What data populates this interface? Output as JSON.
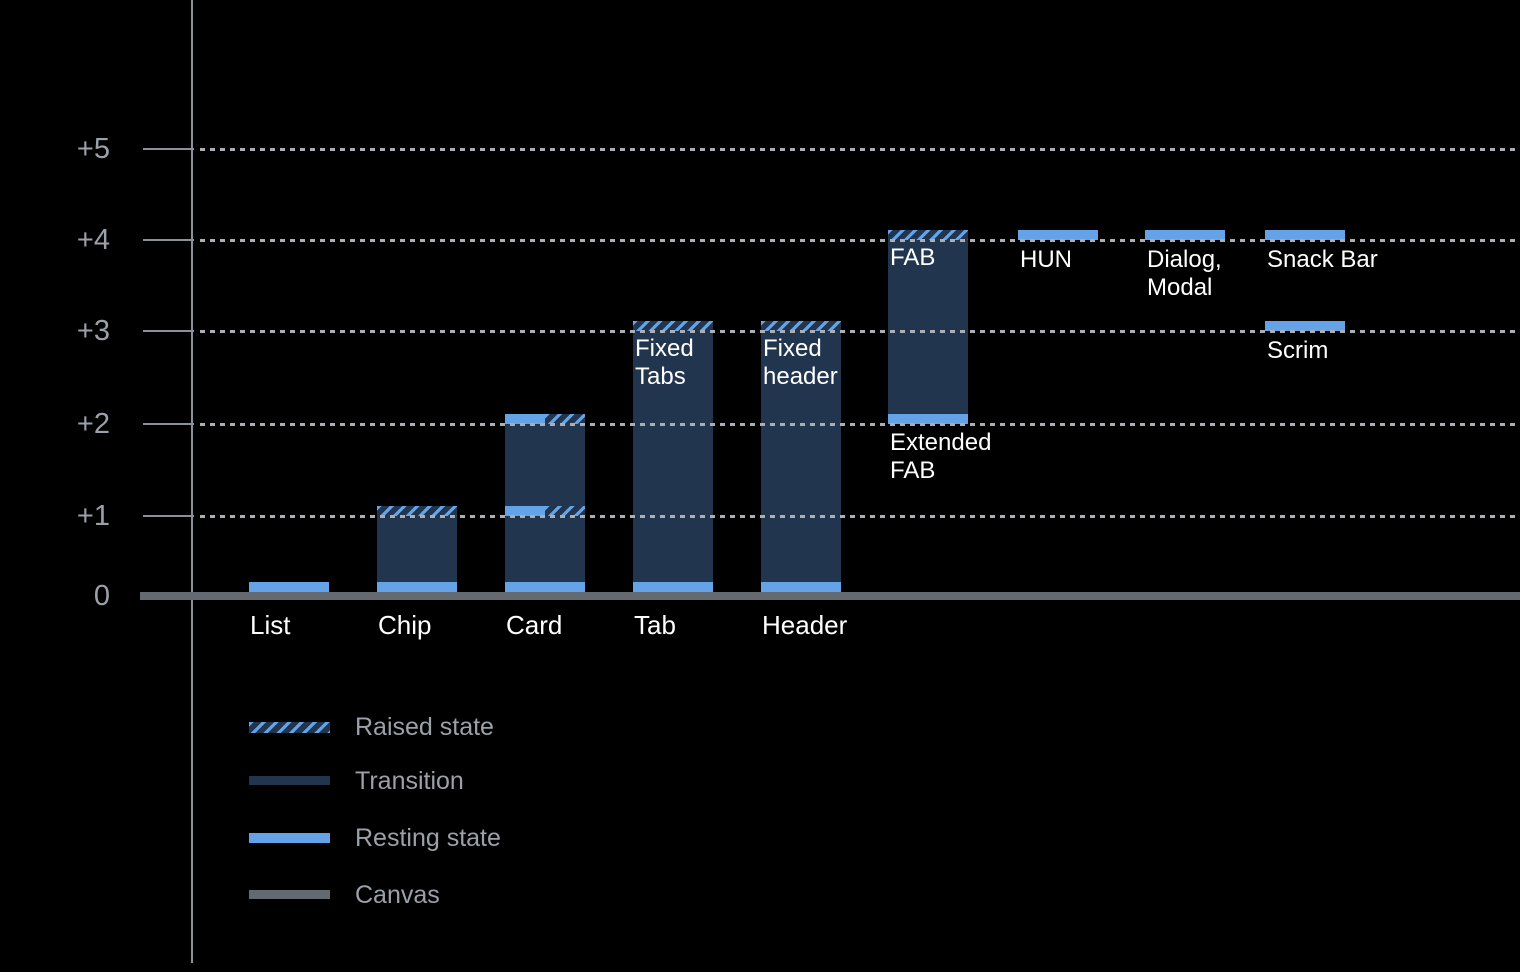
{
  "colors": {
    "background": "#000000",
    "resting": "#64a3e8",
    "transition": "#21364e",
    "canvas": "#646a72",
    "axis": "#8b9199",
    "grid": "#abafb5",
    "tick_label": "#9aa1a8",
    "bar_label": "#ffffff"
  },
  "chart_data": {
    "type": "bar",
    "title": "",
    "xlabel": "",
    "ylabel": "",
    "ylim": [
      0,
      5.5
    ],
    "grid": "dotted horizontal lines at each elevation level",
    "legend_position": "bottom-left",
    "y_axis": {
      "ticks": [
        {
          "label": "+5",
          "value": 5
        },
        {
          "label": "+4",
          "value": 4
        },
        {
          "label": "+3",
          "value": 3
        },
        {
          "label": "+2",
          "value": 2
        },
        {
          "label": "+1",
          "value": 1
        },
        {
          "label": "0",
          "value": 0
        }
      ]
    },
    "legend": {
      "items": [
        {
          "key": "raised",
          "label": "Raised state"
        },
        {
          "key": "transition",
          "label": "Transition"
        },
        {
          "key": "resting",
          "label": "Resting state"
        },
        {
          "key": "canvas",
          "label": "Canvas"
        }
      ]
    },
    "components": [
      {
        "label": "List",
        "axis_label": "List",
        "resting_levels": [
          0
        ],
        "raised_levels": [],
        "transition": null,
        "bands": [
          {
            "level": 0,
            "style": "resting",
            "span": "full"
          }
        ],
        "captions": []
      },
      {
        "label": "Chip",
        "axis_label": "Chip",
        "resting_levels": [
          0
        ],
        "raised_levels": [
          1
        ],
        "transition": [
          0,
          1
        ],
        "bands": [
          {
            "level": 0,
            "style": "resting",
            "span": "full"
          },
          {
            "level": 1,
            "style": "raised",
            "span": "full"
          }
        ],
        "captions": []
      },
      {
        "label": "Card",
        "axis_label": "Card",
        "resting_levels": [
          0,
          1,
          2
        ],
        "raised_levels": [
          1,
          2
        ],
        "transition": [
          0,
          2
        ],
        "bands": [
          {
            "level": 0,
            "style": "resting",
            "span": "full"
          },
          {
            "level": 1,
            "style": "resting",
            "span": "left"
          },
          {
            "level": 1,
            "style": "raised",
            "span": "right"
          },
          {
            "level": 2,
            "style": "resting",
            "span": "left"
          },
          {
            "level": 2,
            "style": "raised",
            "span": "right"
          }
        ],
        "captions": []
      },
      {
        "label": "Tab",
        "axis_label": "Tab",
        "resting_levels": [
          0
        ],
        "raised_levels": [
          3
        ],
        "transition": [
          0,
          3
        ],
        "bands": [
          {
            "level": 0,
            "style": "resting",
            "span": "full"
          },
          {
            "level": 3,
            "style": "raised",
            "span": "full"
          }
        ],
        "captions": [
          {
            "lines": [
              "Fixed",
              "Tabs"
            ],
            "placement": "inside-top"
          }
        ]
      },
      {
        "label": "Header",
        "axis_label": "Header",
        "resting_levels": [
          0
        ],
        "raised_levels": [
          3
        ],
        "transition": [
          0,
          3
        ],
        "bands": [
          {
            "level": 0,
            "style": "resting",
            "span": "full"
          },
          {
            "level": 3,
            "style": "raised",
            "span": "full"
          }
        ],
        "captions": [
          {
            "lines": [
              "Fixed",
              "header"
            ],
            "placement": "inside-top"
          }
        ]
      },
      {
        "label": "FAB / Extended FAB",
        "axis_label": null,
        "resting_levels": [
          2
        ],
        "raised_levels": [
          4
        ],
        "transition": [
          2,
          4
        ],
        "bands": [
          {
            "level": 2,
            "style": "resting",
            "span": "full"
          },
          {
            "level": 4,
            "style": "raised",
            "span": "full"
          }
        ],
        "captions": [
          {
            "lines": [
              "FAB"
            ],
            "placement": "inside-top"
          },
          {
            "lines": [
              "Extended",
              "FAB"
            ],
            "placement": "below-bar"
          }
        ]
      },
      {
        "label": "HUN",
        "axis_label": null,
        "resting_levels": [
          4
        ],
        "raised_levels": [],
        "transition": null,
        "bands": [
          {
            "level": 4,
            "style": "resting",
            "span": "full"
          }
        ],
        "captions": [
          {
            "lines": [
              "HUN"
            ],
            "placement": "below-band"
          }
        ]
      },
      {
        "label": "Dialog, Modal",
        "axis_label": null,
        "resting_levels": [
          4
        ],
        "raised_levels": [],
        "transition": null,
        "bands": [
          {
            "level": 4,
            "style": "resting",
            "span": "full"
          }
        ],
        "captions": [
          {
            "lines": [
              "Dialog,",
              "Modal"
            ],
            "placement": "below-band"
          }
        ]
      },
      {
        "label": "Snack Bar",
        "axis_label": null,
        "resting_levels": [
          4
        ],
        "raised_levels": [],
        "transition": null,
        "bands": [
          {
            "level": 4,
            "style": "resting",
            "span": "full"
          }
        ],
        "captions": [
          {
            "lines": [
              "Snack Bar"
            ],
            "placement": "below-band"
          }
        ]
      },
      {
        "label": "Scrim",
        "axis_label": null,
        "resting_levels": [
          3
        ],
        "raised_levels": [],
        "transition": null,
        "bands": [
          {
            "level": 3,
            "style": "resting",
            "span": "full"
          }
        ],
        "captions": [
          {
            "lines": [
              "Scrim"
            ],
            "placement": "below-band"
          }
        ]
      }
    ]
  }
}
